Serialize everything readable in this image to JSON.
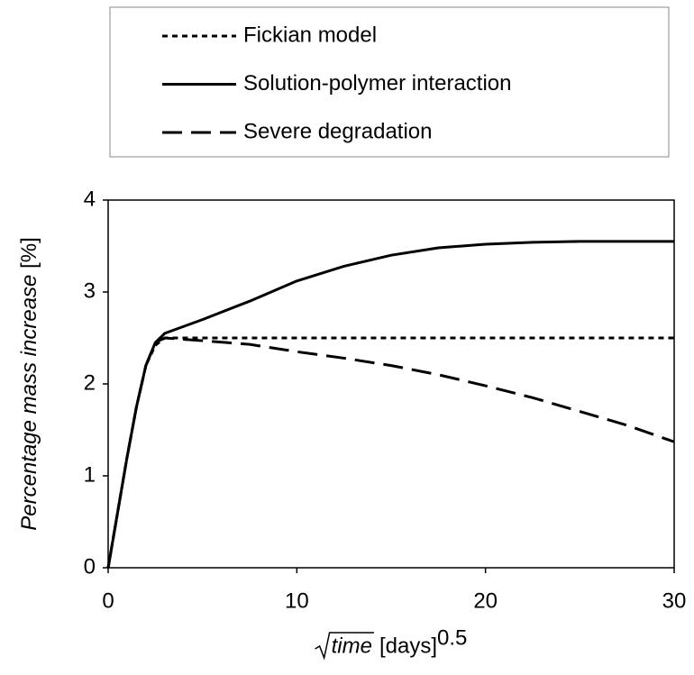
{
  "chart_data": {
    "type": "line",
    "xlabel": {
      "sqrt_term": "time",
      "unit": "[days]",
      "exponent": "0.5"
    },
    "ylabel": {
      "quantity": "Percentage mass increase",
      "unit": "[%]"
    },
    "x": [
      0,
      0.5,
      1,
      1.5,
      2,
      2.5,
      3,
      5,
      7.5,
      10,
      12.5,
      15,
      17.5,
      20,
      22.5,
      25,
      27.5,
      30
    ],
    "series": [
      {
        "name": "Fickian model",
        "color": "#000000",
        "dash": "6,5",
        "values": [
          0,
          0.6,
          1.2,
          1.75,
          2.2,
          2.42,
          2.5,
          2.5,
          2.5,
          2.5,
          2.5,
          2.5,
          2.5,
          2.5,
          2.5,
          2.5,
          2.5,
          2.5
        ]
      },
      {
        "name": "Solution-polymer interaction",
        "color": "#000000",
        "dash": "none",
        "values": [
          0,
          0.6,
          1.2,
          1.75,
          2.2,
          2.45,
          2.55,
          2.7,
          2.9,
          3.12,
          3.28,
          3.4,
          3.48,
          3.52,
          3.54,
          3.55,
          3.55,
          3.55
        ]
      },
      {
        "name": "Severe degradation",
        "color": "#000000",
        "dash": "22,10",
        "values": [
          0,
          0.6,
          1.2,
          1.75,
          2.2,
          2.45,
          2.5,
          2.47,
          2.43,
          2.35,
          2.28,
          2.2,
          2.1,
          1.98,
          1.85,
          1.7,
          1.55,
          1.37
        ]
      }
    ],
    "xlim": [
      0,
      30
    ],
    "xticks": [
      0,
      10,
      20,
      30
    ],
    "ylim": [
      0,
      4
    ],
    "yticks": [
      0,
      1,
      2,
      3,
      4
    ],
    "grid": false,
    "legend": "top"
  }
}
